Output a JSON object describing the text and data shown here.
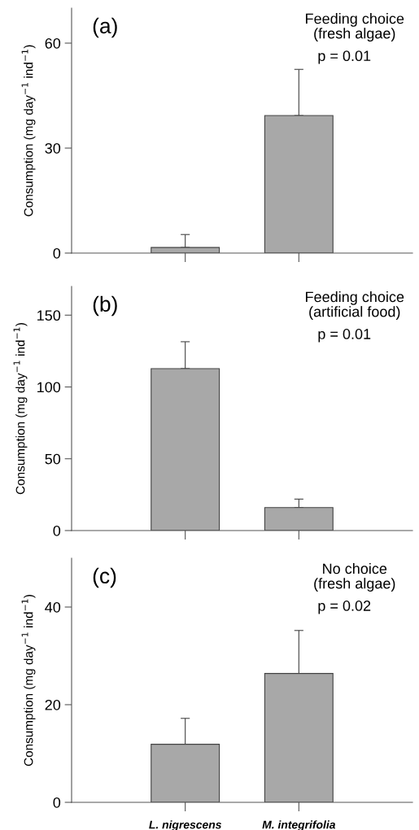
{
  "chart_data": [
    {
      "type": "bar",
      "categories": [
        null,
        null
      ],
      "values": [
        1.6,
        39.3
      ],
      "errors": [
        3.7,
        13.2
      ],
      "color": "#a8a8a8",
      "ylabel": "Consumption (mg day$^{−1}$ ind$^{−1}$)",
      "ylim": [
        0,
        70
      ],
      "yticks": [
        0,
        30,
        60
      ],
      "annotations": [
        "(a)",
        "Feeding choice\n(fresh algae)",
        "p = 0.01"
      ]
    },
    {
      "type": "bar",
      "categories": [
        null,
        null
      ],
      "values": [
        112.8,
        16.0
      ],
      "errors": [
        18.7,
        5.9
      ],
      "color": "#a8a8a8",
      "ylabel": "Consumption (mg day$^{−1}$ ind$^{−1}$)",
      "ylim": [
        0,
        170
      ],
      "yticks": [
        0,
        50,
        100,
        150
      ],
      "annotations": [
        "(b)",
        "Feeding choice\n(artificial food)",
        "p = 0.01"
      ]
    },
    {
      "type": "bar",
      "categories": [
        "L. nigrescens",
        "M. integrifolia"
      ],
      "values": [
        11.9,
        26.4
      ],
      "errors": [
        5.3,
        8.8
      ],
      "color": "#a8a8a8",
      "ylabel": "Consumption (mg day$^{−1}$ ind$^{−1}$)",
      "ylim": [
        0,
        50
      ],
      "yticks": [
        0,
        20,
        40
      ],
      "annotations": [
        "(c)",
        "No choice\n(fresh algae)",
        "p = 0.02"
      ]
    }
  ]
}
